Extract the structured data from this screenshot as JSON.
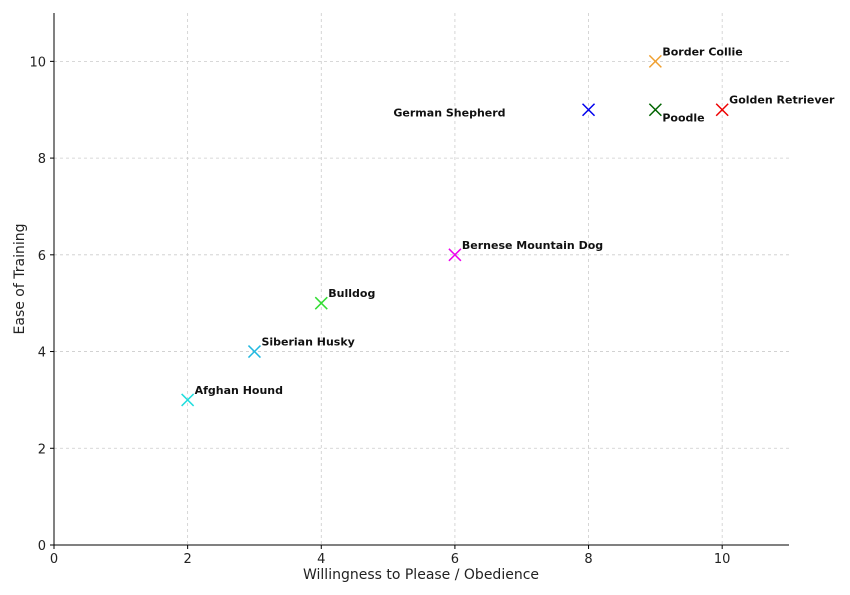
{
  "chart_data": {
    "type": "scatter",
    "title": "",
    "xlabel": "Willingness to Please / Obedience",
    "ylabel": "Ease of Training",
    "xlim": [
      0,
      11
    ],
    "ylim": [
      0,
      11
    ],
    "xticks": [
      0,
      2,
      4,
      6,
      8,
      10
    ],
    "yticks": [
      0,
      2,
      4,
      6,
      8,
      10
    ],
    "grid": true,
    "marker": "x",
    "points": [
      {
        "label": "Border Collie",
        "x": 9,
        "y": 10,
        "color": "#f0a030",
        "label_anchor": "right-above"
      },
      {
        "label": "German Shepherd",
        "x": 8,
        "y": 9,
        "color": "#0000ee",
        "label_anchor": "left"
      },
      {
        "label": "Poodle",
        "x": 9,
        "y": 9,
        "color": "#006400",
        "label_anchor": "right-below"
      },
      {
        "label": "Golden Retriever",
        "x": 10,
        "y": 9,
        "color": "#ee0000",
        "label_anchor": "right-above"
      },
      {
        "label": "Bernese Mountain Dog",
        "x": 6,
        "y": 6,
        "color": "#ee00ee",
        "label_anchor": "right-above"
      },
      {
        "label": "Bulldog",
        "x": 4,
        "y": 5,
        "color": "#33dd33",
        "label_anchor": "right-above"
      },
      {
        "label": "Siberian Husky",
        "x": 3,
        "y": 4,
        "color": "#22b8e0",
        "label_anchor": "right-above"
      },
      {
        "label": "Afghan Hound",
        "x": 2,
        "y": 3,
        "color": "#22dddd",
        "label_anchor": "right-above"
      }
    ]
  }
}
